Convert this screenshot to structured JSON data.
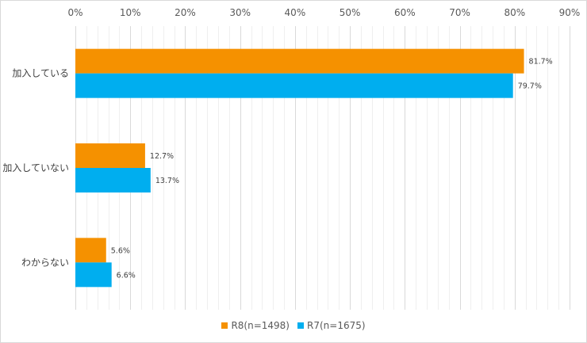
{
  "chart_data": {
    "type": "bar",
    "orientation": "horizontal",
    "categories": [
      "加入している",
      "加入していない",
      "わからない"
    ],
    "series": [
      {
        "name": "R8(n=1498)",
        "color": "#F59100",
        "values": [
          81.7,
          12.7,
          5.6
        ]
      },
      {
        "name": "R7(n=1675)",
        "color": "#00AEEF",
        "values": [
          79.7,
          13.7,
          6.6
        ]
      }
    ],
    "xlim": [
      0,
      90
    ],
    "x_ticks": [
      "0%",
      "10%",
      "20%",
      "30%",
      "40%",
      "50%",
      "60%",
      "70%",
      "80%",
      "90%"
    ],
    "data_labels": [
      [
        "81.7%",
        "12.7%",
        "5.6%"
      ],
      [
        "79.7%",
        "13.7%",
        "6.6%"
      ]
    ],
    "title": "",
    "xlabel": "",
    "ylabel": "",
    "grid": true,
    "legend_position": "bottom"
  }
}
